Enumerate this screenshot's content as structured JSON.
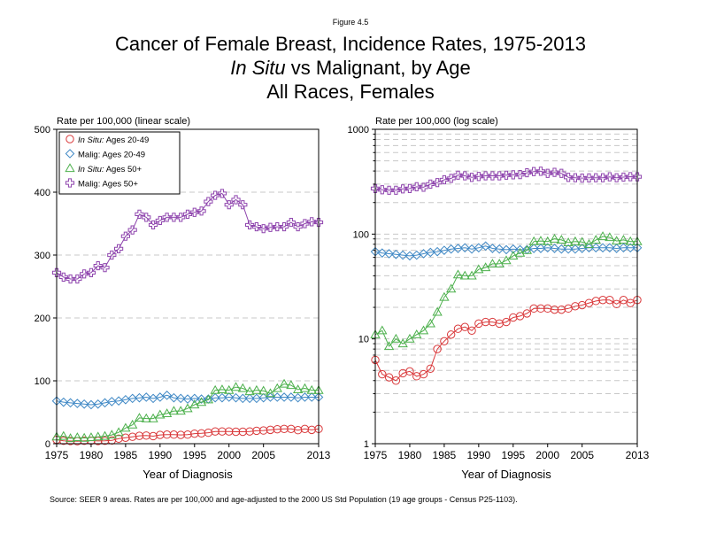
{
  "figure_label": "Figure 4.5",
  "title_lines": [
    "Cancer of Female Breast, Incidence Rates, 1975-2013",
    "All Races, Females"
  ],
  "title_line2": {
    "italic_part": "In Situ",
    "rest": " vs Malignant, by Age"
  },
  "source_note": "Source: SEER 9 areas. Rates are per 100,000 and age-adjusted to the 2000 US Std Population (19 age groups - Census P25-1103).",
  "colors": {
    "insitu_20_49": "#d9383a",
    "malig_20_49": "#3f88c5",
    "insitu_50": "#4cb04c",
    "malig_50": "#8e44ad",
    "grid": "#c8c8c8"
  },
  "chart_data": [
    {
      "type": "line",
      "title": "",
      "ylabel": "Rate per 100,000 (linear scale)",
      "xlabel": "Year of Diagnosis",
      "xlim": [
        1975,
        2013
      ],
      "ylim": [
        0,
        500
      ],
      "y_scale": "linear",
      "x_ticks": [
        "1975",
        "1980",
        "1985",
        "1990",
        "1995",
        "2000",
        "2005",
        "2013"
      ],
      "y_ticks": [
        "0",
        "100",
        "200",
        "300",
        "400",
        "500"
      ],
      "grid": "horizontal dashed",
      "legend_position": "top-left",
      "x": [
        1975,
        1976,
        1977,
        1978,
        1979,
        1980,
        1981,
        1982,
        1983,
        1984,
        1985,
        1986,
        1987,
        1988,
        1989,
        1990,
        1991,
        1992,
        1993,
        1994,
        1995,
        1996,
        1997,
        1998,
        1999,
        2000,
        2001,
        2002,
        2003,
        2004,
        2005,
        2006,
        2007,
        2008,
        2009,
        2010,
        2011,
        2012,
        2013
      ],
      "series": [
        {
          "name_prefix": "In Situ:",
          "name_rest": " Ages 20-49",
          "italic": true,
          "marker": "circle",
          "color_key": "insitu_20_49",
          "values": [
            6.3,
            4.6,
            4.3,
            4.0,
            4.7,
            4.9,
            4.4,
            4.6,
            5.2,
            8.0,
            9.5,
            11.0,
            12.5,
            13.0,
            12.0,
            14.0,
            14.5,
            14.5,
            14.0,
            14.5,
            16.0,
            16.5,
            17.5,
            19.5,
            19.5,
            19.5,
            19.0,
            19.0,
            19.5,
            20.5,
            21.0,
            22.0,
            23.0,
            23.5,
            23.5,
            21.5,
            23.5,
            22.0,
            23.5
          ]
        },
        {
          "name_prefix": "Malig:",
          "name_rest": " Ages 20-49",
          "italic": false,
          "marker": "diamond",
          "color_key": "malig_20_49",
          "values": [
            68,
            66,
            65,
            64,
            63,
            62,
            63,
            65,
            67,
            68,
            70,
            72,
            73,
            74,
            72,
            74,
            77,
            73,
            72,
            71,
            72,
            71,
            71,
            73,
            73,
            74,
            73,
            72,
            72,
            72,
            73,
            74,
            74,
            74,
            74,
            73,
            74,
            74,
            74
          ]
        },
        {
          "name_prefix": "In Situ:",
          "name_rest": " Ages 50+",
          "italic": true,
          "marker": "triangle",
          "color_key": "insitu_50",
          "values": [
            11,
            12,
            8.5,
            10,
            9,
            10,
            11,
            12,
            14,
            18,
            25,
            30,
            41,
            40,
            40,
            46,
            48,
            52,
            52,
            56,
            62,
            66,
            70,
            85,
            86,
            85,
            90,
            88,
            83,
            85,
            84,
            80,
            88,
            95,
            93,
            86,
            88,
            85,
            85
          ]
        },
        {
          "name_prefix": "Malig:",
          "name_rest": " Ages 50+",
          "italic": false,
          "marker": "plus",
          "color_key": "malig_50",
          "values": [
            272,
            265,
            262,
            262,
            270,
            272,
            283,
            280,
            300,
            310,
            330,
            340,
            365,
            360,
            348,
            355,
            360,
            360,
            360,
            365,
            368,
            370,
            385,
            395,
            398,
            380,
            388,
            380,
            348,
            345,
            342,
            344,
            345,
            345,
            352,
            345,
            350,
            353,
            352
          ]
        }
      ]
    },
    {
      "type": "line",
      "title": "",
      "ylabel": "Rate per 100,000 (log scale)",
      "xlabel": "Year of Diagnosis",
      "xlim": [
        1975,
        2013
      ],
      "ylim": [
        1,
        1000
      ],
      "y_scale": "log",
      "x_ticks": [
        "1975",
        "1980",
        "1985",
        "1990",
        "1995",
        "2000",
        "2005",
        "2013"
      ],
      "y_ticks": [
        "1",
        "10",
        "100",
        "1000"
      ],
      "grid": "horizontal dashed",
      "legend_position": "none",
      "series_ref": "same series as the linear-scale panel"
    }
  ]
}
